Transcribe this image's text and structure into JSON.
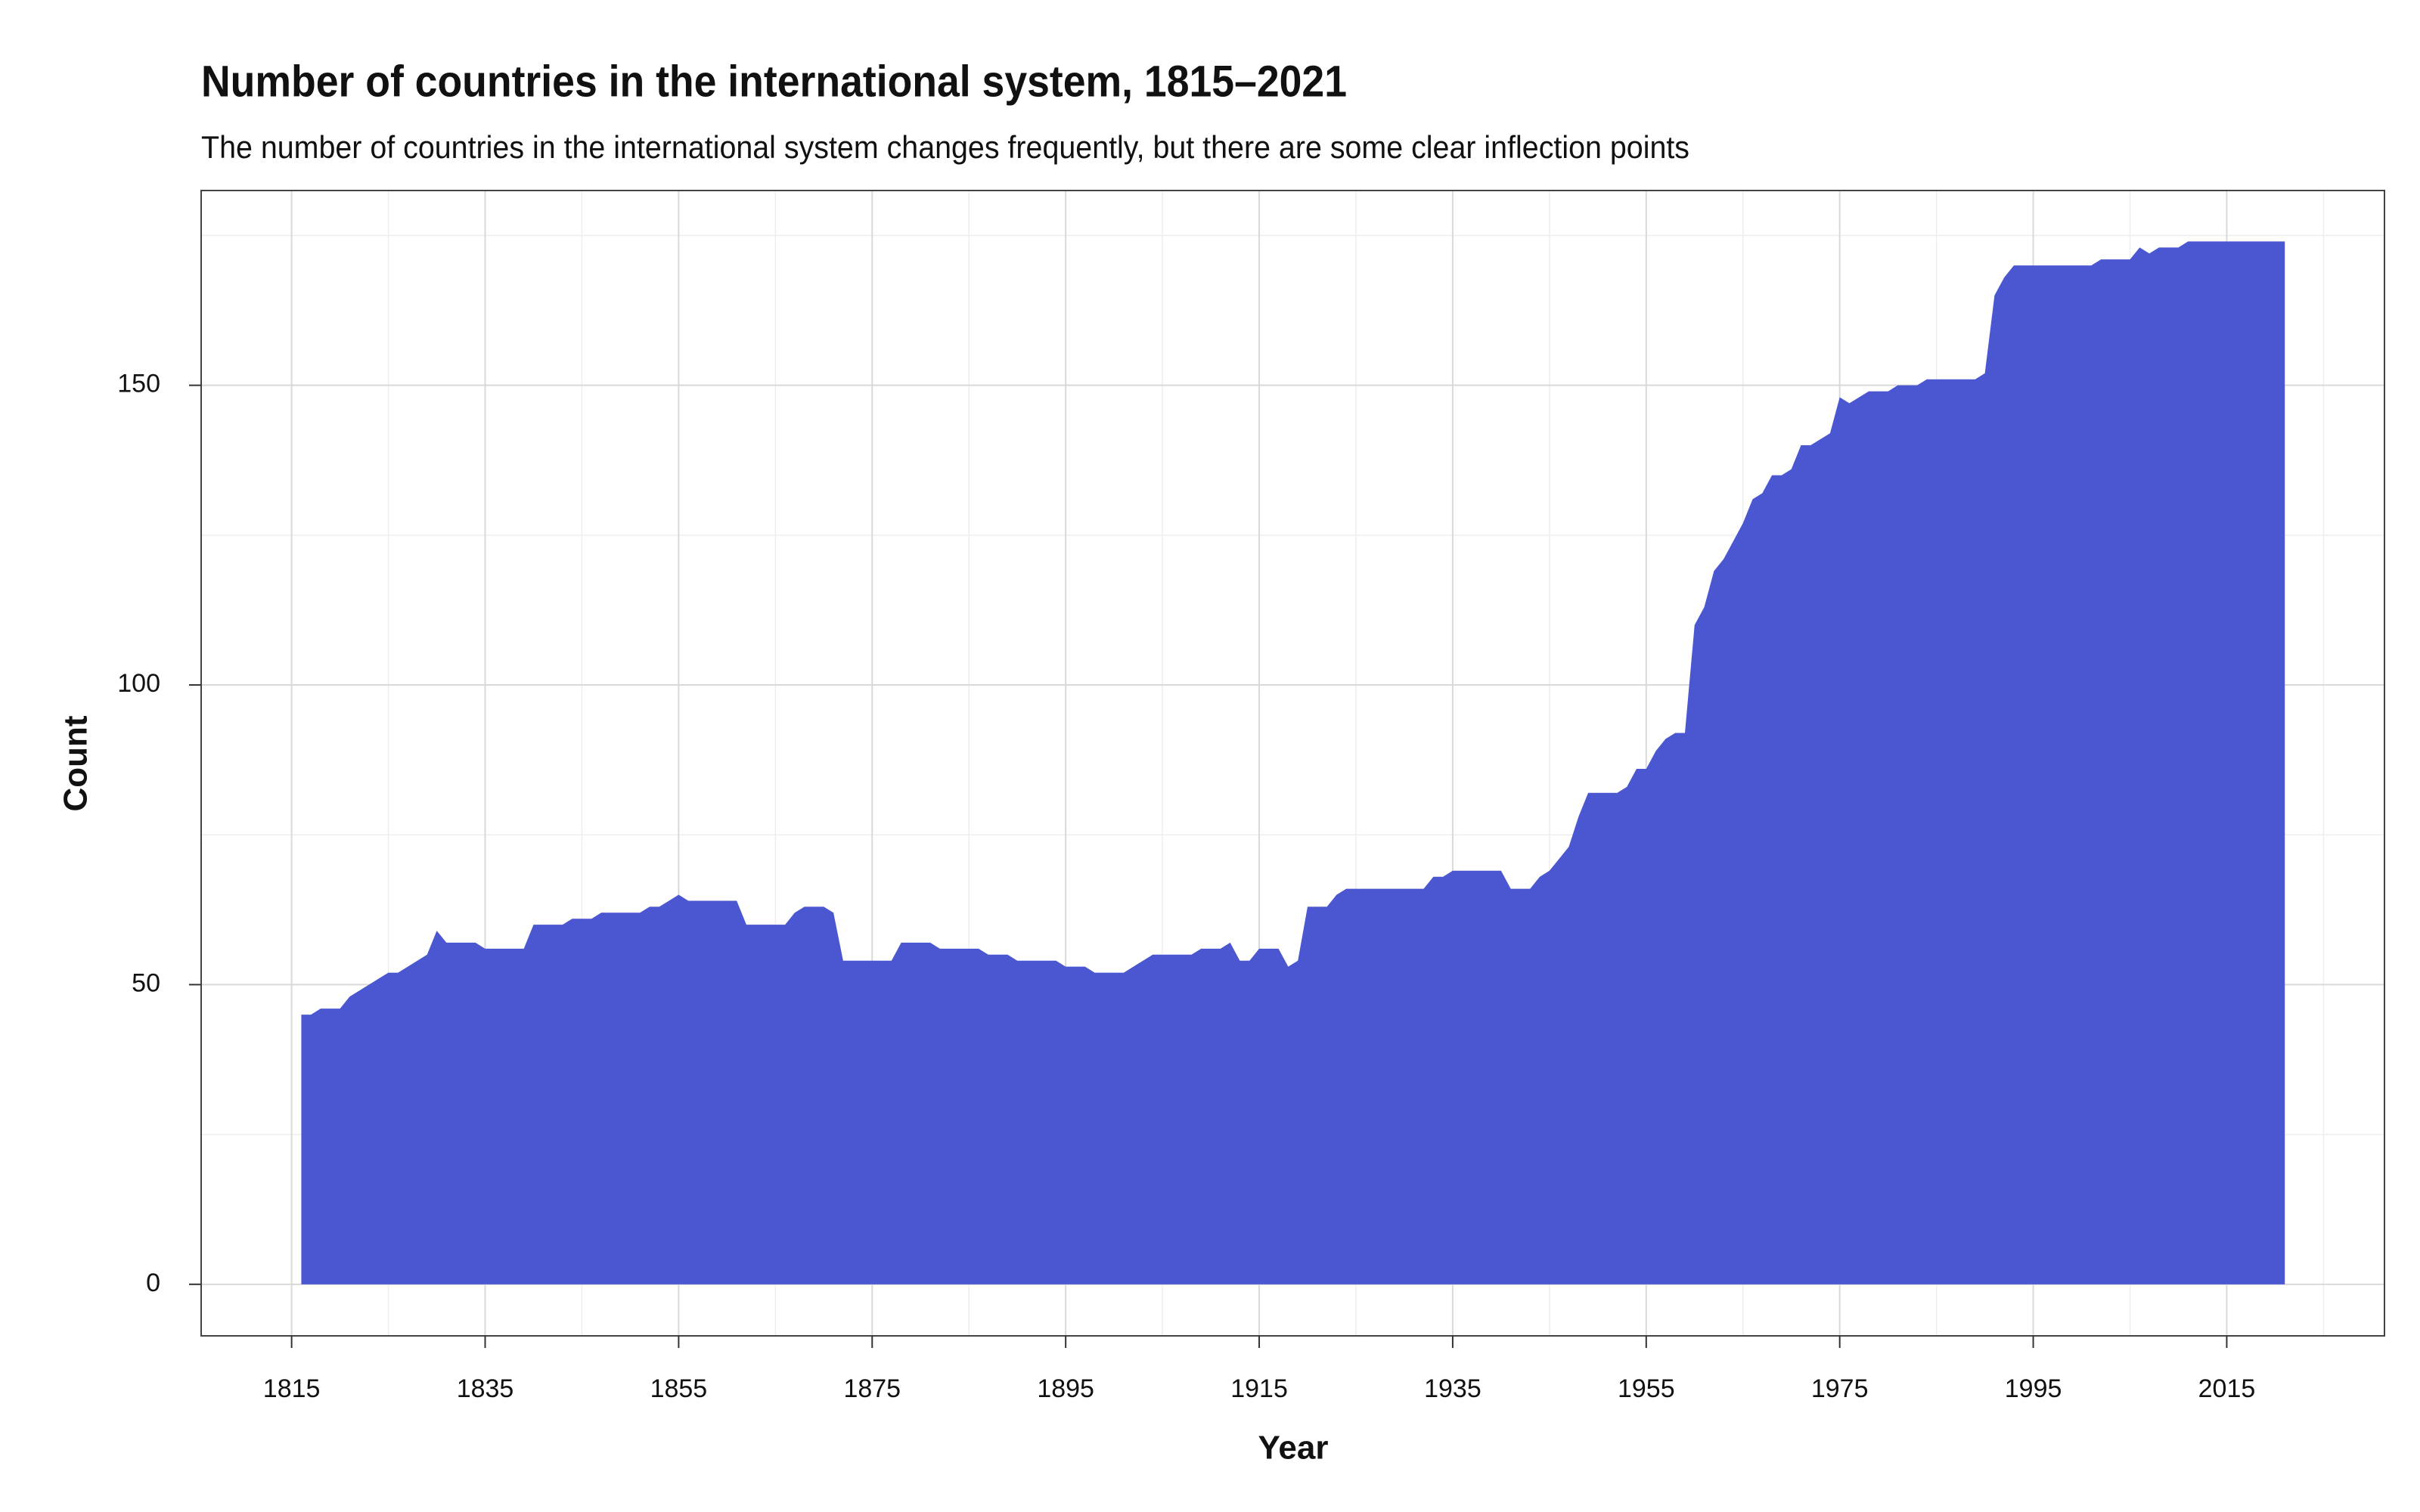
{
  "chart_data": {
    "type": "area",
    "title": "Number of countries in the international system, 1815–2021",
    "subtitle": "The number of countries in the international system changes frequently, but there are some clear inflection points",
    "x_label": "Year",
    "y_label": "Count",
    "color": "#4b57d0",
    "grid": true,
    "xlim": [
      1805.65,
      2031.3
    ],
    "ylim": [
      -8.6,
      182.5
    ],
    "xticks": [
      1815,
      1835,
      1855,
      1875,
      1895,
      1915,
      1935,
      1955,
      1975,
      1995,
      2015
    ],
    "yticks": [
      0,
      50,
      100,
      150
    ],
    "x_minor_ticks": [
      1825,
      1845,
      1865,
      1885,
      1905,
      1925,
      1945,
      1965,
      1985,
      2005,
      2025
    ],
    "y_minor_ticks": [
      25,
      75,
      125,
      175
    ],
    "x": [
      1816,
      1817,
      1818,
      1820,
      1821,
      1825,
      1826,
      1829,
      1830,
      1831,
      1834,
      1835,
      1839,
      1840,
      1843,
      1844,
      1846,
      1847,
      1851,
      1852,
      1853,
      1855,
      1856,
      1861,
      1862,
      1866,
      1867,
      1868,
      1870,
      1871,
      1872,
      1877,
      1878,
      1881,
      1882,
      1886,
      1887,
      1889,
      1890,
      1894,
      1895,
      1897,
      1898,
      1901,
      1902,
      1904,
      1908,
      1909,
      1911,
      1912,
      1913,
      1914,
      1915,
      1917,
      1918,
      1919,
      1920,
      1922,
      1923,
      1924,
      1932,
      1933,
      1934,
      1935,
      1940,
      1941,
      1943,
      1944,
      1945,
      1947,
      1948,
      1949,
      1952,
      1953,
      1954,
      1955,
      1956,
      1957,
      1958,
      1959,
      1960,
      1961,
      1962,
      1963,
      1964,
      1965,
      1966,
      1967,
      1968,
      1969,
      1970,
      1971,
      1972,
      1974,
      1975,
      1976,
      1978,
      1980,
      1981,
      1983,
      1984,
      1989,
      1990,
      1991,
      1992,
      1993,
      2001,
      2002,
      2005,
      2006,
      2007,
      2008,
      2010,
      2011,
      2021
    ],
    "values": [
      45,
      45,
      46,
      46,
      48,
      52,
      52,
      55,
      59,
      57,
      57,
      56,
      56,
      60,
      60,
      61,
      61,
      62,
      62,
      63,
      63,
      65,
      64,
      64,
      60,
      60,
      62,
      63,
      63,
      62,
      54,
      54,
      57,
      57,
      56,
      56,
      55,
      55,
      54,
      54,
      53,
      53,
      52,
      52,
      53,
      55,
      55,
      56,
      56,
      57,
      54,
      54,
      56,
      56,
      53,
      54,
      63,
      63,
      65,
      66,
      66,
      68,
      68,
      69,
      69,
      66,
      66,
      68,
      69,
      73,
      78,
      82,
      82,
      83,
      86,
      86,
      89,
      91,
      92,
      92,
      110,
      113,
      119,
      121,
      124,
      127,
      131,
      132,
      135,
      135,
      136,
      140,
      140,
      142,
      148,
      147,
      149,
      149,
      150,
      150,
      151,
      151,
      152,
      165,
      168,
      170,
      170,
      171,
      171,
      173,
      172,
      173,
      173,
      174,
      174
    ]
  }
}
